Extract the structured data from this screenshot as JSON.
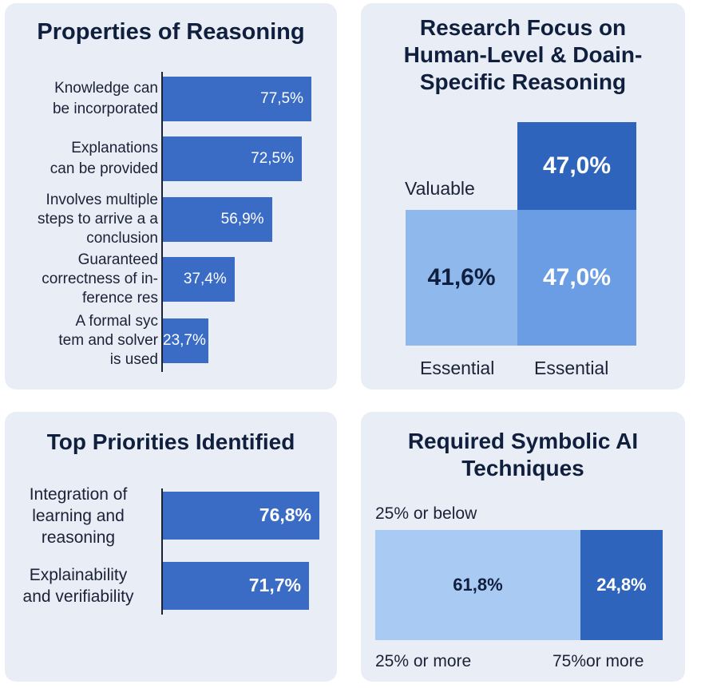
{
  "colors": {
    "panel_bg": "#e9edf5",
    "bar": "#3a6cc5",
    "dark_cell": "#2f64bd",
    "mid_cell": "#6b9de4",
    "light_cell": "#8fb8ec",
    "text": "#0f1f3d"
  },
  "chart_data": [
    {
      "type": "bar",
      "orientation": "horizontal",
      "title": "Properties of Reasoning",
      "categories": [
        [
          "Knowledge can",
          "be incorporated"
        ],
        [
          "Explanations",
          "can be provided"
        ],
        [
          "Involves multiple",
          "steps to arrive a a",
          "conclusion"
        ],
        [
          "Guaranteed",
          "correctness of in-",
          "ference res"
        ],
        [
          "A formal syc",
          "tem and solver",
          "is used"
        ]
      ],
      "values": [
        77.5,
        72.5,
        56.9,
        37.4,
        23.7
      ],
      "value_labels": [
        "77,5%",
        "72,5%",
        "56,9%",
        "37,4%",
        "23,7%"
      ],
      "xlim": [
        0,
        100
      ]
    },
    {
      "type": "heatmap",
      "title": "Research Focus on Human-Level & Doain-Specific Reasoning",
      "row_labels": [
        "Valuable"
      ],
      "col_labels": [
        "Essential",
        "Essential"
      ],
      "cells": [
        {
          "row": 0,
          "col": 1,
          "value": 47.0,
          "label": "47,0%"
        },
        {
          "row": 1,
          "col": 0,
          "value": 41.6,
          "label": "41,6%"
        },
        {
          "row": 1,
          "col": 1,
          "value": 47.0,
          "label": "47,0%"
        }
      ]
    },
    {
      "type": "bar",
      "orientation": "horizontal",
      "title": "Top Priorities Identified",
      "categories": [
        [
          "Integration of",
          "learning and",
          "reasoning"
        ],
        [
          "Explainability",
          "and verifiability"
        ]
      ],
      "values": [
        76.8,
        71.7
      ],
      "value_labels": [
        "76,8%",
        "71,7%"
      ],
      "xlim": [
        0,
        100
      ]
    },
    {
      "type": "bar",
      "orientation": "stacked-horizontal",
      "title": "Required Symbolic AI Techniques",
      "top_label": "25% or below",
      "segments": [
        {
          "value": 61.8,
          "label": "61,8%",
          "axis_label": "25% or more"
        },
        {
          "value": 24.8,
          "label": "24,8%",
          "axis_label": "75%or more"
        }
      ]
    }
  ]
}
